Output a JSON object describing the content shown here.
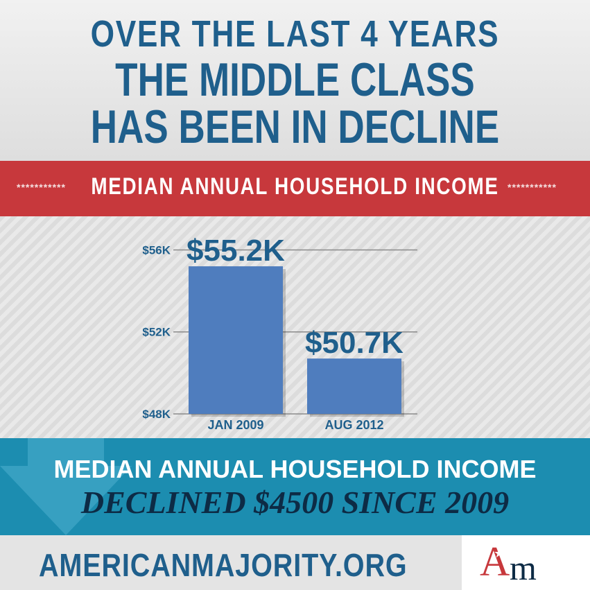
{
  "headline": {
    "line1": "OVER THE LAST 4 YEARS",
    "line2": "THE MIDDLE CLASS",
    "line3": "HAS BEEN IN DECLINE"
  },
  "banner": {
    "title": "MEDIAN  ANNUAL HOUSEHOLD INCOME",
    "dots": "***********"
  },
  "chart_data": {
    "type": "bar",
    "categories": [
      "JAN 2009",
      "AUG 2012"
    ],
    "values": [
      55.2,
      50.7
    ],
    "data_labels": [
      "$55.2K",
      "$50.7K"
    ],
    "ylim": [
      48,
      57.3
    ],
    "yticks": [
      48,
      52,
      56
    ],
    "ytick_labels": [
      "$48K",
      "$52K",
      "$56K"
    ],
    "bar_color": "#4f7dbe",
    "grid": true
  },
  "summary": {
    "line1": "MEDIAN ANNUAL HOUSEHOLD INCOME",
    "line2": "DECLINED $4500 SINCE 2009"
  },
  "footer": {
    "site": "AMERICANMAJORITY.ORG",
    "logo_a": "A",
    "logo_m": "m",
    "logo_star": "★"
  },
  "colors": {
    "headline_blue": "#1f5f8c",
    "banner_red": "#c7383c",
    "band_blue": "#1c8db0"
  }
}
